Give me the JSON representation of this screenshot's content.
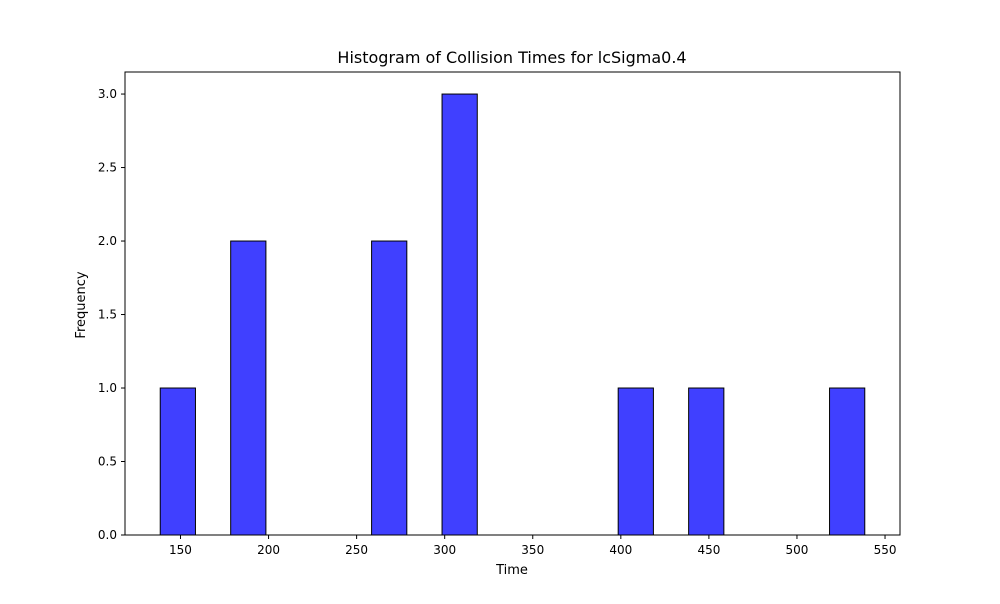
{
  "chart_data": {
    "type": "bar",
    "title": "Histogram of Collision Times for lcSigma0.4",
    "xlabel": "Time",
    "ylabel": "Frequency",
    "xlim": [
      118.5,
      558.5
    ],
    "ylim": [
      0,
      3.15
    ],
    "x_ticks": [
      150,
      200,
      250,
      300,
      350,
      400,
      450,
      500,
      550
    ],
    "x_tick_labels": [
      "150",
      "200",
      "250",
      "300",
      "350",
      "400",
      "450",
      "500",
      "550"
    ],
    "y_ticks": [
      0.0,
      0.5,
      1.0,
      1.5,
      2.0,
      2.5,
      3.0
    ],
    "y_tick_labels": [
      "0.0",
      "0.5",
      "1.0",
      "1.5",
      "2.0",
      "2.5",
      "3.0"
    ],
    "grid": false,
    "legend": "none",
    "bar_color": "#4040ff",
    "edge_color": "#000000",
    "bins": [
      {
        "x0": 138.5,
        "x1": 158.5,
        "count": 1
      },
      {
        "x0": 178.5,
        "x1": 198.5,
        "count": 2
      },
      {
        "x0": 258.5,
        "x1": 278.5,
        "count": 2
      },
      {
        "x0": 298.5,
        "x1": 318.5,
        "count": 3
      },
      {
        "x0": 398.5,
        "x1": 418.5,
        "count": 1
      },
      {
        "x0": 438.5,
        "x1": 458.5,
        "count": 1
      },
      {
        "x0": 518.5,
        "x1": 538.5,
        "count": 1
      }
    ]
  }
}
